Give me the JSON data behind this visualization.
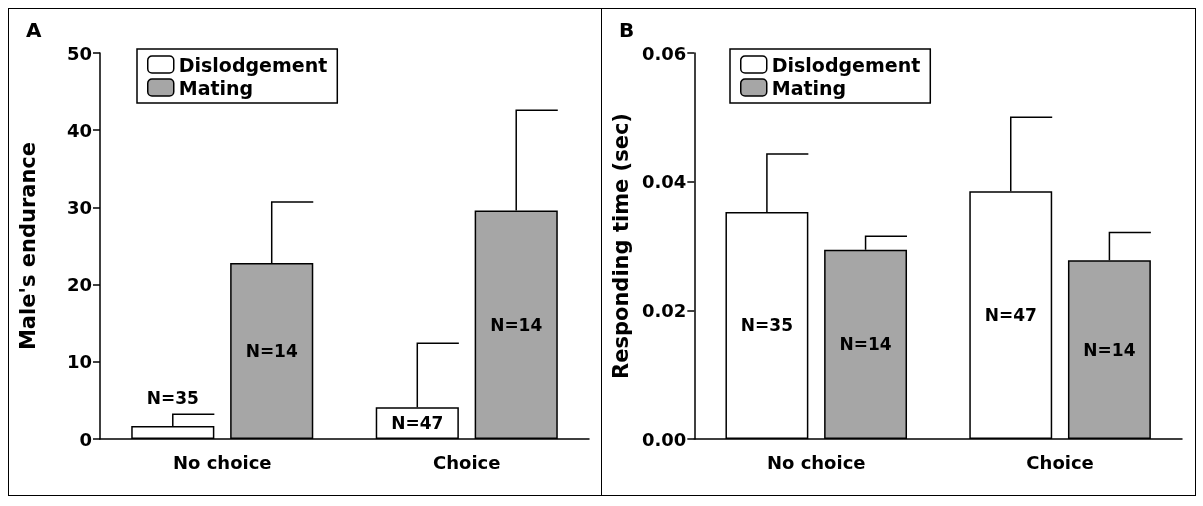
{
  "chart_data": [
    {
      "type": "bar",
      "title": "A",
      "ylabel": "Male's endurance",
      "categories": [
        "No choice",
        "Choice"
      ],
      "ylim": [
        0,
        50
      ],
      "yticks": [
        0,
        10,
        20,
        30,
        40,
        50
      ],
      "grid": false,
      "legend": "top left",
      "annotations": [
        "N=35",
        "N=47",
        "N=14",
        "N=14"
      ],
      "series": [
        {
          "name": "Dislodgement",
          "color": "#ffffff",
          "values": [
            1.7,
            4.1
          ],
          "errors": [
            [
              1.7,
              3.2
            ],
            [
              4.1,
              12.4
            ]
          ]
        },
        {
          "name": "Mating",
          "color": "#a6a6a6",
          "values": [
            22.8,
            29.6
          ],
          "errors": [
            [
              22.8,
              30.7
            ],
            [
              29.6,
              42.6
            ]
          ]
        }
      ]
    },
    {
      "type": "bar",
      "title": "B",
      "ylabel": "Responding time (sec)",
      "categories": [
        "No choice",
        "Choice"
      ],
      "ylim": [
        0,
        0.06
      ],
      "yticks": [
        {
          "value": 0,
          "label": "0.00"
        },
        {
          "value": 0.02,
          "label": "0.02"
        },
        {
          "value": 0.04,
          "label": "0.04"
        },
        {
          "value": 0.06,
          "label": "0.06"
        }
      ],
      "grid": false,
      "legend": "top left",
      "annotations": [
        "N=35",
        "N=47",
        "N=14",
        "N=14"
      ],
      "series": [
        {
          "name": "Dislodgement",
          "color": "#ffffff",
          "values": [
            0.0353,
            0.0385
          ],
          "errors": [
            [
              0.0353,
              0.0443
            ],
            [
              0.0385,
              0.05
            ]
          ]
        },
        {
          "name": "Mating",
          "color": "#a6a6a6",
          "values": [
            0.0294,
            0.0278
          ],
          "errors": [
            [
              0.0294,
              0.0315
            ],
            [
              0.0278,
              0.0321
            ]
          ]
        }
      ]
    }
  ]
}
